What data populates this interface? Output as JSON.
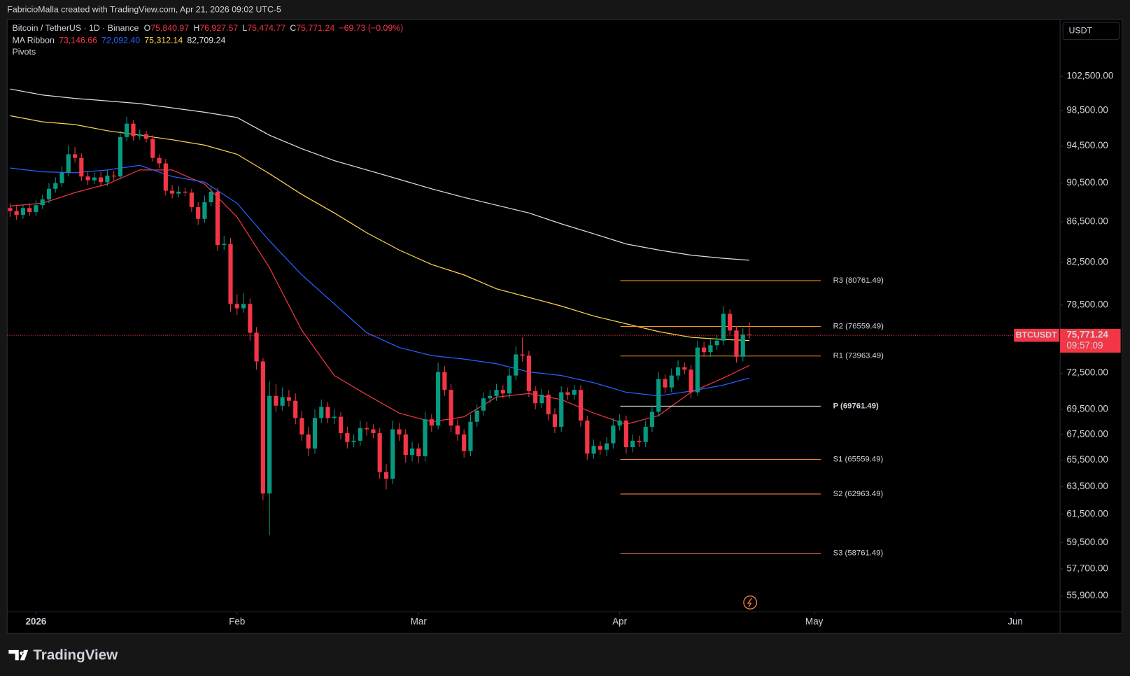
{
  "header": {
    "attribution": "FabricioMalla created with TradingView.com, Apr 21, 2026 09:02 UTC-5",
    "brand": "TradingView"
  },
  "chart_data": {
    "type": "candlestick",
    "symbol": "Bitcoin / TetherUS · 1D · Binance",
    "ohlc_legend": [
      {
        "key": "O",
        "value": "75,840.97"
      },
      {
        "key": "H",
        "value": "76,927.57"
      },
      {
        "key": "L",
        "value": "75,474.77"
      },
      {
        "key": "C",
        "value": "75,771.24"
      }
    ],
    "change": "−69.73 (−0.09%)",
    "currency": "USDT",
    "ticker": "BTCUSDT",
    "last_price_label": "75,771.24",
    "countdown": "09:57:09",
    "log_scale": true,
    "up_color": "#089981",
    "down_color": "#f23645",
    "xlim": [
      -4.44,
      157.8
    ],
    "xticks": [
      {
        "value": 0,
        "label": "2026"
      },
      {
        "value": 31,
        "label": "Feb"
      },
      {
        "value": 59,
        "label": "Mar"
      },
      {
        "value": 90,
        "label": "Apr"
      },
      {
        "value": 120,
        "label": "May"
      },
      {
        "value": 151,
        "label": "Jun"
      }
    ],
    "ylim": [
      54921,
      109540
    ],
    "yticks": [
      {
        "value": 102500,
        "label": "102,500.00"
      },
      {
        "value": 98500,
        "label": "98,500.00"
      },
      {
        "value": 94500,
        "label": "94,500.00"
      },
      {
        "value": 90500,
        "label": "90,500.00"
      },
      {
        "value": 86500,
        "label": "86,500.00"
      },
      {
        "value": 82500,
        "label": "82,500.00"
      },
      {
        "value": 78500,
        "label": "78,500.00"
      },
      {
        "value": 72500,
        "label": "72,500.00"
      },
      {
        "value": 69500,
        "label": "69,500.00"
      },
      {
        "value": 67500,
        "label": "67,500.00"
      },
      {
        "value": 65500,
        "label": "65,500.00"
      },
      {
        "value": 63500,
        "label": "63,500.00"
      },
      {
        "value": 61500,
        "label": "61,500.00"
      },
      {
        "value": 59500,
        "label": "59,500.00"
      },
      {
        "value": 57700,
        "label": "57,700.00"
      },
      {
        "value": 55900,
        "label": "55,900.00"
      }
    ],
    "x": [
      -4,
      -3,
      -2,
      -1,
      0,
      1,
      2,
      3,
      4,
      5,
      6,
      7,
      8,
      9,
      10,
      11,
      12,
      13,
      14,
      15,
      16,
      17,
      18,
      19,
      20,
      21,
      22,
      23,
      24,
      25,
      26,
      27,
      28,
      29,
      30,
      31,
      32,
      33,
      34,
      35,
      36,
      37,
      38,
      39,
      40,
      41,
      42,
      43,
      44,
      45,
      46,
      47,
      48,
      49,
      50,
      51,
      52,
      53,
      54,
      55,
      56,
      57,
      58,
      59,
      60,
      61,
      62,
      63,
      64,
      65,
      66,
      67,
      68,
      69,
      70,
      71,
      72,
      73,
      74,
      75,
      76,
      77,
      78,
      79,
      80,
      81,
      82,
      83,
      84,
      85,
      86,
      87,
      88,
      89,
      90,
      91,
      92,
      93,
      94,
      95,
      96,
      97,
      98,
      99,
      100,
      101,
      102,
      103,
      104,
      105,
      106,
      107,
      108,
      109,
      110
    ],
    "open": [
      87900,
      87600,
      87200,
      87900,
      87500,
      88200,
      88800,
      89900,
      90500,
      91600,
      93600,
      93200,
      91200,
      90800,
      91100,
      90600,
      91300,
      91200,
      95500,
      97000,
      95600,
      95800,
      95300,
      93200,
      92600,
      89700,
      89400,
      89600,
      89500,
      88000,
      86800,
      88500,
      89600,
      84200,
      84300,
      78600,
      78200,
      78600,
      76000,
      73500,
      63000,
      70600,
      69800,
      70500,
      70200,
      68800,
      67500,
      66400,
      68800,
      69700,
      68800,
      68900,
      67600,
      66900,
      67000,
      68000,
      67900,
      67600,
      64600,
      64100,
      67900,
      67500,
      65900,
      66400,
      65800,
      68700,
      68200,
      72600,
      71100,
      68200,
      67500,
      66200,
      68500,
      69400,
      70400,
      70600,
      71100,
      70800,
      72300,
      74100,
      74000,
      71000,
      70000,
      70700,
      69100,
      68100,
      70900,
      70700,
      71100,
      68600,
      66000,
      66600,
      66300,
      66800,
      68200,
      68600,
      66500,
      67000,
      66900,
      68100,
      69300,
      72000,
      71300,
      72300,
      73000,
      72800,
      70900,
      74700,
      74300,
      74900,
      75300,
      77700,
      76200,
      73900,
      75840.97
    ],
    "high": [
      88400,
      88100,
      88300,
      88400,
      88700,
      89300,
      90500,
      91100,
      92300,
      94600,
      94400,
      93700,
      91700,
      91600,
      91700,
      91900,
      91800,
      96200,
      97800,
      97400,
      96300,
      96200,
      95700,
      93600,
      93100,
      90300,
      90200,
      90000,
      89900,
      88500,
      89200,
      90200,
      90000,
      85100,
      84900,
      79500,
      79600,
      79100,
      76500,
      73800,
      71800,
      71600,
      71300,
      71100,
      70800,
      69400,
      68100,
      69500,
      70300,
      70100,
      69500,
      69300,
      68100,
      67500,
      68600,
      68500,
      68300,
      68000,
      65200,
      68600,
      68400,
      67900,
      66900,
      66800,
      69300,
      69100,
      73400,
      73100,
      71600,
      68700,
      67900,
      69100,
      69900,
      70900,
      71100,
      71600,
      71500,
      72900,
      74800,
      75600,
      74400,
      71400,
      71200,
      71100,
      69600,
      71400,
      71300,
      71500,
      71500,
      69000,
      67100,
      67000,
      67300,
      68800,
      69100,
      69000,
      67500,
      67400,
      68600,
      69800,
      72600,
      72400,
      72900,
      73600,
      73400,
      73200,
      75300,
      75200,
      75400,
      75800,
      78400,
      78100,
      76600,
      76400,
      76927.57
    ],
    "low": [
      87000,
      86700,
      86800,
      87100,
      87100,
      87800,
      88400,
      89500,
      90100,
      91200,
      92700,
      90700,
      90300,
      90400,
      90100,
      90200,
      90800,
      90900,
      95000,
      95100,
      95200,
      94900,
      92800,
      92100,
      89200,
      88900,
      89000,
      89100,
      87500,
      86200,
      86400,
      88100,
      83600,
      83700,
      77900,
      77600,
      77800,
      75300,
      72800,
      62500,
      60000,
      69300,
      69400,
      69700,
      68300,
      67000,
      65800,
      66000,
      68400,
      68400,
      68300,
      67100,
      66400,
      66500,
      66600,
      67400,
      67200,
      64100,
      63300,
      63700,
      67000,
      65300,
      65400,
      65300,
      65400,
      67700,
      67900,
      70600,
      67700,
      67000,
      65700,
      65800,
      68100,
      69000,
      70000,
      70200,
      70400,
      70400,
      71900,
      73500,
      70500,
      69500,
      69600,
      68600,
      67600,
      67700,
      70300,
      70300,
      68100,
      65500,
      65600,
      65900,
      65800,
      66400,
      67800,
      66000,
      66100,
      66500,
      66500,
      67700,
      68900,
      70800,
      70900,
      71900,
      72400,
      70400,
      70600,
      73900,
      73900,
      74500,
      74900,
      75800,
      73400,
      73500,
      75474.77
    ],
    "close": [
      87600,
      87200,
      87900,
      87500,
      88200,
      88800,
      89900,
      90500,
      91600,
      93600,
      93200,
      91200,
      90800,
      91100,
      90600,
      91300,
      91200,
      95500,
      97000,
      95600,
      95800,
      95300,
      93200,
      92600,
      89700,
      89400,
      89600,
      89500,
      88000,
      86800,
      88500,
      89600,
      84200,
      84300,
      78600,
      78200,
      78600,
      76000,
      73500,
      63000,
      70600,
      69800,
      70500,
      70200,
      68800,
      67500,
      66400,
      68800,
      69700,
      68800,
      68900,
      67600,
      66900,
      67000,
      68000,
      67900,
      67600,
      64600,
      64100,
      67900,
      67500,
      65900,
      66400,
      65800,
      68700,
      68200,
      72600,
      71100,
      68200,
      67500,
      66200,
      68500,
      69400,
      70400,
      70600,
      71100,
      70800,
      72300,
      74100,
      74000,
      71000,
      70000,
      70700,
      69100,
      68100,
      70900,
      70700,
      71100,
      68600,
      66000,
      66600,
      66300,
      66800,
      68200,
      68600,
      66500,
      67000,
      66900,
      68100,
      69300,
      72000,
      71300,
      72300,
      73000,
      72800,
      70900,
      74700,
      74300,
      74900,
      75300,
      77700,
      76200,
      73900,
      75840.97,
      75771.24
    ],
    "ma_ribbon": {
      "name": "MA Ribbon",
      "x": [
        -4,
        1,
        6,
        11,
        16,
        21,
        26,
        31,
        36,
        41,
        46,
        51,
        56,
        61,
        66,
        71,
        76,
        81,
        86,
        91,
        96,
        101,
        106,
        110
      ],
      "series": [
        {
          "color": "#f23645",
          "value_label": "73,146.66",
          "values": [
            88100,
            88400,
            89500,
            90400,
            91900,
            91900,
            90400,
            87000,
            82000,
            76200,
            72300,
            70700,
            69200,
            68500,
            68900,
            70500,
            70800,
            70300,
            69200,
            68300,
            69000,
            70900,
            72100,
            73146.66
          ]
        },
        {
          "color": "#2962ff",
          "value_label": "72,092.40",
          "values": [
            92100,
            91700,
            91600,
            91900,
            92400,
            91200,
            90600,
            88400,
            84600,
            81300,
            78600,
            76000,
            74700,
            74000,
            73700,
            73300,
            72600,
            72300,
            71700,
            70900,
            70600,
            71000,
            71500,
            72092.4
          ]
        },
        {
          "color": "#ffd54f",
          "value_label": "75,312.14",
          "values": [
            97900,
            97200,
            96900,
            96200,
            95700,
            95200,
            94600,
            93600,
            91500,
            89300,
            87400,
            85400,
            83700,
            82300,
            81300,
            80000,
            79200,
            78400,
            77500,
            76800,
            76100,
            75600,
            75400,
            75312.14
          ]
        },
        {
          "color": "#e0e0e0",
          "value_label": "82,709.24",
          "values": [
            101000,
            100300,
            99900,
            99600,
            99300,
            98800,
            98300,
            97700,
            95700,
            94200,
            92900,
            91900,
            90900,
            89900,
            89000,
            88200,
            87400,
            86300,
            85300,
            84300,
            83700,
            83200,
            82900,
            82709.24
          ]
        }
      ]
    },
    "pivots": {
      "name": "Pivots",
      "levels": [
        {
          "value": 80761.49,
          "label": "R3 (80761.49)",
          "color": "#f7931a"
        },
        {
          "value": 76559.49,
          "label": "R2 (76559.49)",
          "color": "#f7931a"
        },
        {
          "value": 73963.49,
          "label": "R1 (73963.49)",
          "color": "#f7931a"
        },
        {
          "value": 69761.49,
          "label": "P (69761.49)",
          "color": "#ffffff"
        },
        {
          "value": 65559.49,
          "label": "S1 (65559.49)",
          "color": "#f5813f"
        },
        {
          "value": 62963.49,
          "label": "S2 (62963.49)",
          "color": "#f5813f"
        },
        {
          "value": 58761.49,
          "label": "S3 (58761.49)",
          "color": "#f5813f"
        }
      ]
    }
  }
}
